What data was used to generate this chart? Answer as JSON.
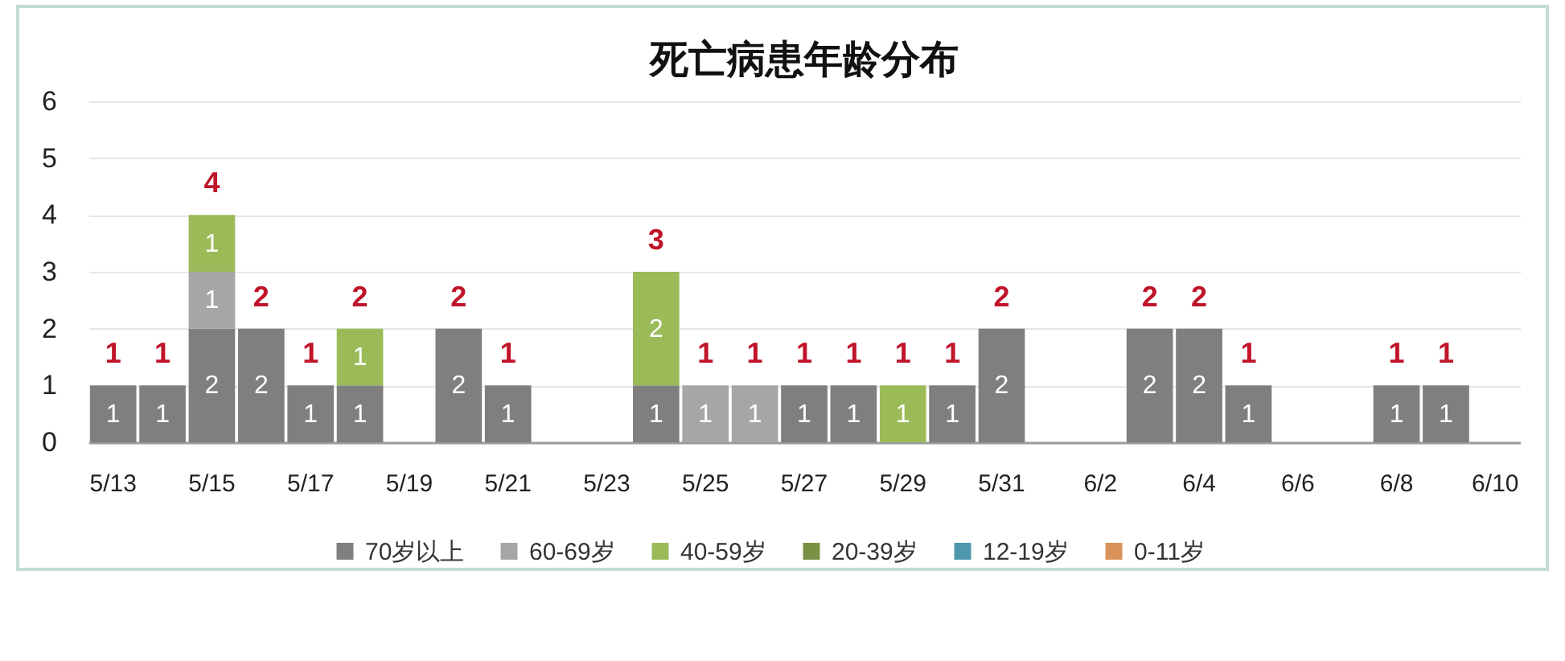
{
  "chart_data": {
    "type": "bar",
    "title": "死亡病患年龄分布",
    "categories": [
      "5/13",
      null,
      "5/15",
      null,
      "5/17",
      null,
      "5/19",
      null,
      "5/21",
      null,
      "5/23",
      null,
      "5/25",
      null,
      "5/27",
      null,
      "5/29",
      null,
      "5/31",
      null,
      "6/2",
      null,
      "6/4",
      null,
      "6/6",
      null,
      "6/8",
      null,
      "6/10"
    ],
    "stacked": true,
    "series": [
      {
        "name": "70岁以上",
        "color": "#7f7f7f",
        "values": [
          1,
          1,
          2,
          2,
          1,
          1,
          null,
          2,
          1,
          null,
          null,
          1,
          null,
          null,
          1,
          1,
          null,
          1,
          2,
          null,
          null,
          2,
          2,
          1,
          null,
          null,
          1,
          1,
          null
        ]
      },
      {
        "name": "60-69岁",
        "color": "#a6a6a6",
        "values": [
          null,
          null,
          1,
          null,
          null,
          null,
          null,
          null,
          null,
          null,
          null,
          null,
          1,
          1,
          null,
          null,
          null,
          null,
          null,
          null,
          null,
          null,
          null,
          null,
          null,
          null,
          null,
          null,
          null
        ]
      },
      {
        "name": "40-59岁",
        "color": "#9bbb59",
        "values": [
          null,
          null,
          1,
          null,
          null,
          1,
          null,
          null,
          null,
          null,
          null,
          2,
          null,
          null,
          null,
          null,
          1,
          null,
          null,
          null,
          null,
          null,
          null,
          null,
          null,
          null,
          null,
          null,
          null
        ]
      },
      {
        "name": "20-39岁",
        "color": "#7a9145",
        "values": [
          null,
          null,
          null,
          null,
          null,
          null,
          null,
          null,
          null,
          null,
          null,
          null,
          null,
          null,
          null,
          null,
          null,
          null,
          null,
          null,
          null,
          null,
          null,
          null,
          null,
          null,
          null,
          null,
          null
        ]
      },
      {
        "name": "12-19岁",
        "color": "#4f97ad",
        "values": [
          null,
          null,
          null,
          null,
          null,
          null,
          null,
          null,
          null,
          null,
          null,
          null,
          null,
          null,
          null,
          null,
          null,
          null,
          null,
          null,
          null,
          null,
          null,
          null,
          null,
          null,
          null,
          null,
          null
        ]
      },
      {
        "name": "0-11岁",
        "color": "#d9925a",
        "values": [
          null,
          null,
          null,
          null,
          null,
          null,
          null,
          null,
          null,
          null,
          null,
          null,
          null,
          null,
          null,
          null,
          null,
          null,
          null,
          null,
          null,
          null,
          null,
          null,
          null,
          null,
          null,
          null,
          null
        ]
      }
    ],
    "totals": [
      "1",
      "1",
      "4",
      "2",
      "1",
      "2",
      null,
      "2",
      "1",
      null,
      null,
      "3",
      "1",
      "1",
      "1",
      "1",
      "1",
      "1",
      "2",
      null,
      null,
      "2",
      "2",
      "1",
      null,
      null,
      "1",
      "1",
      null
    ],
    "ylim": [
      0,
      6
    ],
    "yticks": [
      0,
      1,
      2,
      3,
      4,
      5,
      6
    ],
    "grid": "y",
    "legend": "bottom",
    "data_labels": true
  }
}
